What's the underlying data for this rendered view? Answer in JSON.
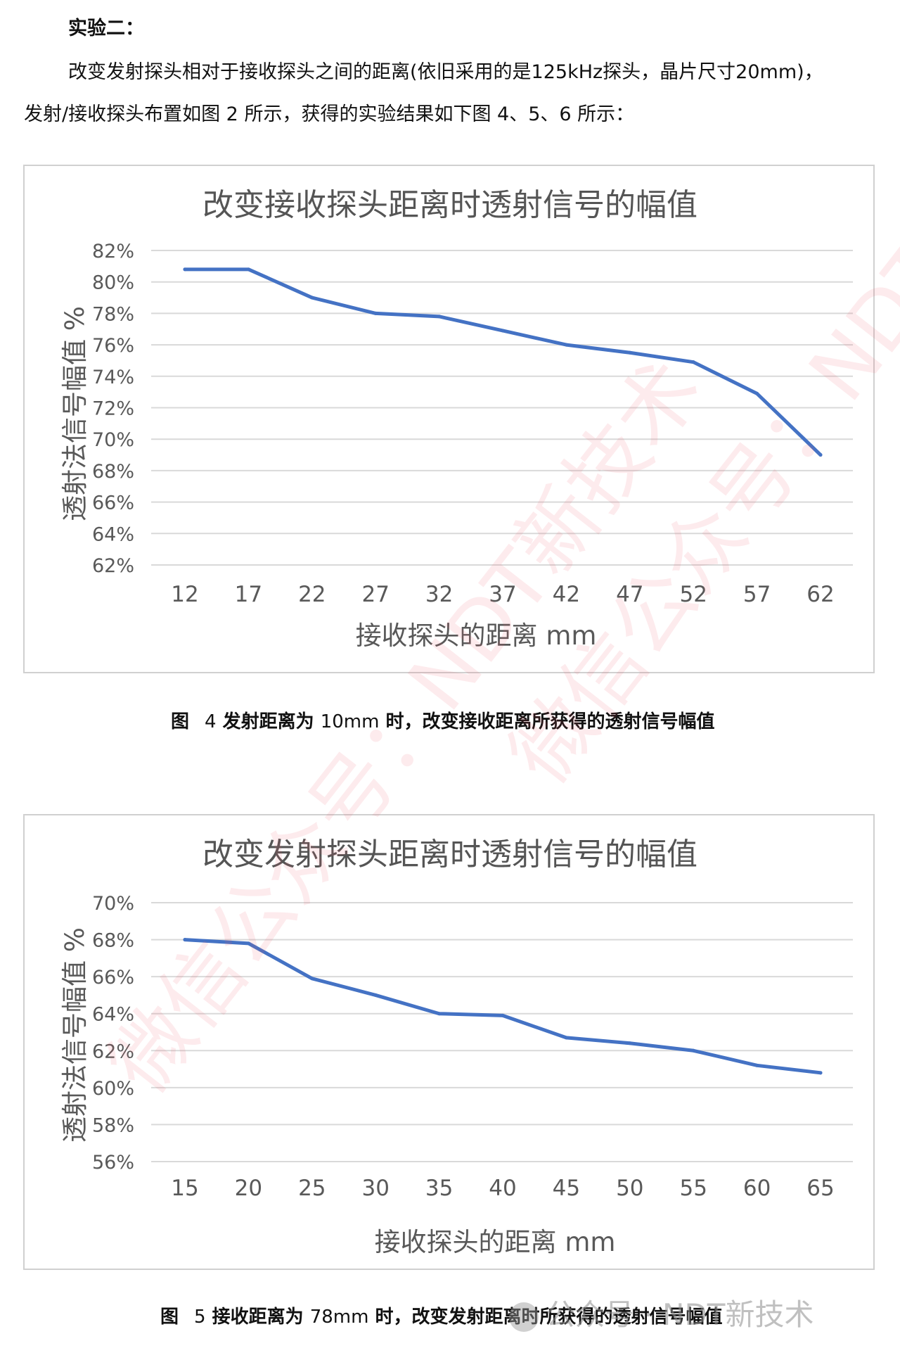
{
  "heading": "实验二：",
  "paragraph_line1": "改变发射探头相对于接收探头之间的距离(依旧采用的是125kHz探头，晶片尺寸20mm)，",
  "paragraph_line2": "发射/接收探头布置如图 2 所示，获得的实验结果如下图 4、5、6 所示：",
  "caption1": {
    "fig": "图",
    "num": "4",
    "text_a": "发射距离为",
    "value": "10mm",
    "text_b": "时，改变接收距离所获得的透射信号幅值"
  },
  "caption2": {
    "fig": "图",
    "num": "5",
    "text_a": "接收距离为",
    "value": "78mm",
    "text_b": "时，改变发射距离时所获得的透射信号幅值"
  },
  "watermark_text": "微信公众号：NDT新技术",
  "footer_logo": "公众号 · NDT新技术",
  "line_color": "#4472c4",
  "chart_data": [
    {
      "type": "line",
      "title": "改变接收探头距离时透射信号的幅值",
      "xlabel": "接收探头的距离 mm",
      "ylabel": "透射法信号幅值 %",
      "x": [
        12,
        17,
        22,
        27,
        32,
        37,
        42,
        47,
        52,
        57,
        62
      ],
      "y": [
        80.8,
        80.8,
        79.0,
        78.0,
        77.8,
        76.9,
        76.0,
        75.5,
        74.9,
        72.9,
        69.0
      ],
      "yticks": [
        "82%",
        "80%",
        "78%",
        "76%",
        "74%",
        "72%",
        "70%",
        "68%",
        "66%",
        "64%",
        "62%"
      ],
      "ylim": [
        62,
        82
      ],
      "grid": true
    },
    {
      "type": "line",
      "title": "改变发射探头距离时透射信号的幅值",
      "xlabel": "接收探头的距离 mm",
      "ylabel": "透射法信号幅值 %",
      "x": [
        15,
        20,
        25,
        30,
        35,
        40,
        45,
        50,
        55,
        60,
        65
      ],
      "y": [
        68.0,
        67.8,
        65.9,
        65.0,
        64.0,
        63.9,
        62.7,
        62.4,
        62.0,
        61.2,
        60.8
      ],
      "yticks": [
        "70%",
        "68%",
        "66%",
        "64%",
        "62%",
        "60%",
        "58%",
        "56%"
      ],
      "ylim": [
        56,
        70
      ],
      "grid": true
    }
  ]
}
